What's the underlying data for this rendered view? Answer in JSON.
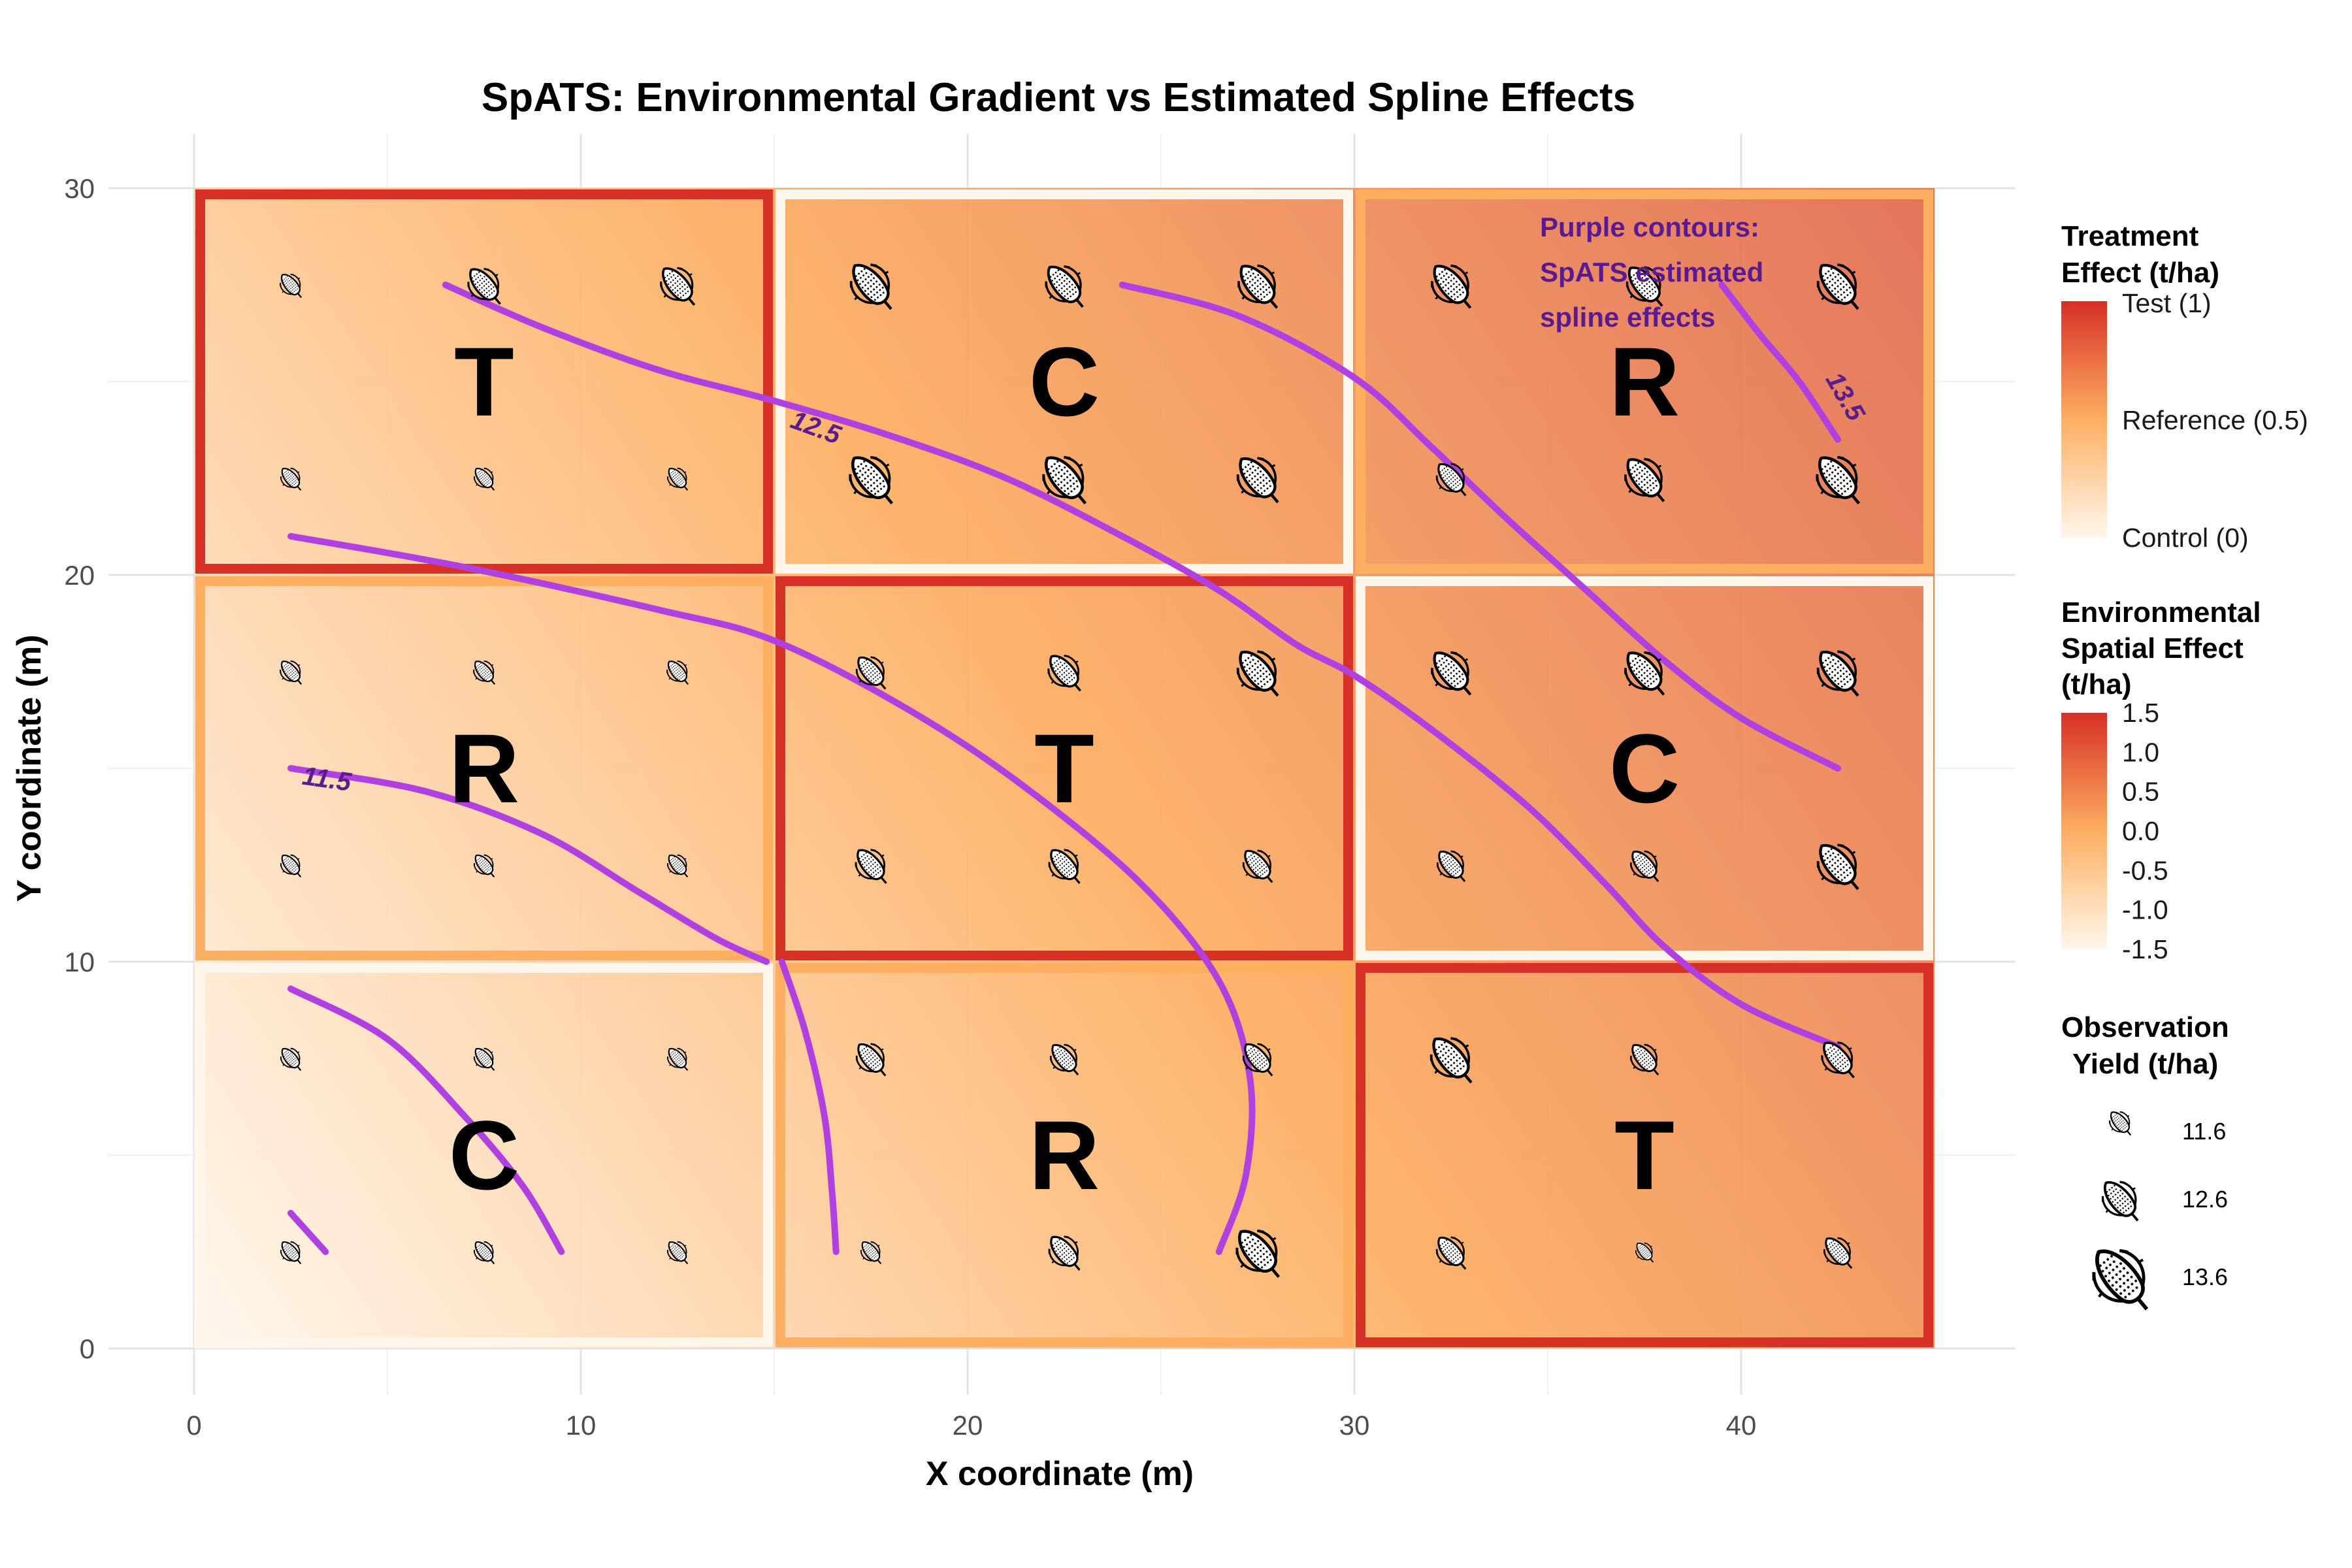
{
  "chart_data": {
    "type": "heatmap",
    "title": "SpATS: Environmental Gradient vs Estimated Spline Effects",
    "xlabel": "X coordinate (m)",
    "ylabel": "Y coordinate (m)",
    "xlim": [
      0,
      45
    ],
    "ylim": [
      0,
      30
    ],
    "x_ticks": [
      0,
      10,
      20,
      30,
      40
    ],
    "y_ticks": [
      0,
      10,
      20,
      30
    ],
    "x_tick_labels": [
      "0",
      "10",
      "20",
      "30",
      "40"
    ],
    "y_tick_labels": [
      "0",
      "10",
      "20",
      "30"
    ],
    "environmental_field": {
      "description_formula": "effect = -1.5 + 3.0 * (x/45 + y/30) / 2",
      "range": [
        -1.5,
        1.5
      ]
    },
    "plots": [
      {
        "letter": "T",
        "treatment": "Test",
        "effect": 1,
        "x0": 0,
        "x1": 15,
        "y0": 20,
        "y1": 30
      },
      {
        "letter": "C",
        "treatment": "Control",
        "effect": 0,
        "x0": 15,
        "x1": 30,
        "y0": 20,
        "y1": 30
      },
      {
        "letter": "R",
        "treatment": "Reference",
        "effect": 0.5,
        "x0": 30,
        "x1": 45,
        "y0": 20,
        "y1": 30
      },
      {
        "letter": "R",
        "treatment": "Reference",
        "effect": 0.5,
        "x0": 0,
        "x1": 15,
        "y0": 10,
        "y1": 20
      },
      {
        "letter": "T",
        "treatment": "Test",
        "effect": 1,
        "x0": 15,
        "x1": 30,
        "y0": 10,
        "y1": 20
      },
      {
        "letter": "C",
        "treatment": "Control",
        "effect": 0,
        "x0": 30,
        "x1": 45,
        "y0": 10,
        "y1": 20
      },
      {
        "letter": "C",
        "treatment": "Control",
        "effect": 0,
        "x0": 0,
        "x1": 15,
        "y0": 0,
        "y1": 10
      },
      {
        "letter": "R",
        "treatment": "Reference",
        "effect": 0.5,
        "x0": 15,
        "x1": 30,
        "y0": 0,
        "y1": 10
      },
      {
        "letter": "T",
        "treatment": "Test",
        "effect": 1,
        "x0": 30,
        "x1": 45,
        "y0": 0,
        "y1": 10
      }
    ],
    "observations": [
      {
        "x": 2.5,
        "y": 27.5,
        "yield": 11.6
      },
      {
        "x": 7.5,
        "y": 27.5,
        "yield": 12.4
      },
      {
        "x": 12.5,
        "y": 27.5,
        "yield": 12.5
      },
      {
        "x": 17.5,
        "y": 27.5,
        "yield": 12.9
      },
      {
        "x": 22.5,
        "y": 27.5,
        "yield": 12.7
      },
      {
        "x": 27.5,
        "y": 27.5,
        "yield": 12.8
      },
      {
        "x": 32.5,
        "y": 27.5,
        "yield": 12.8
      },
      {
        "x": 37.5,
        "y": 27.5,
        "yield": 12.6
      },
      {
        "x": 42.5,
        "y": 27.5,
        "yield": 12.9
      },
      {
        "x": 2.5,
        "y": 22.5,
        "yield": 11.5
      },
      {
        "x": 7.5,
        "y": 22.5,
        "yield": 11.5
      },
      {
        "x": 12.5,
        "y": 22.5,
        "yield": 11.5
      },
      {
        "x": 17.5,
        "y": 22.5,
        "yield": 13.0
      },
      {
        "x": 22.5,
        "y": 22.5,
        "yield": 13.0
      },
      {
        "x": 27.5,
        "y": 22.5,
        "yield": 12.9
      },
      {
        "x": 32.5,
        "y": 22.5,
        "yield": 12.2
      },
      {
        "x": 37.5,
        "y": 22.5,
        "yield": 12.8
      },
      {
        "x": 42.5,
        "y": 22.5,
        "yield": 13.0
      },
      {
        "x": 2.5,
        "y": 17.5,
        "yield": 11.6
      },
      {
        "x": 7.5,
        "y": 17.5,
        "yield": 11.6
      },
      {
        "x": 12.5,
        "y": 17.5,
        "yield": 11.6
      },
      {
        "x": 17.5,
        "y": 17.5,
        "yield": 12.2
      },
      {
        "x": 22.5,
        "y": 17.5,
        "yield": 12.4
      },
      {
        "x": 27.5,
        "y": 17.5,
        "yield": 12.9
      },
      {
        "x": 32.5,
        "y": 17.5,
        "yield": 12.8
      },
      {
        "x": 37.5,
        "y": 17.5,
        "yield": 12.8
      },
      {
        "x": 42.5,
        "y": 17.5,
        "yield": 12.9
      },
      {
        "x": 2.5,
        "y": 12.5,
        "yield": 11.5
      },
      {
        "x": 7.5,
        "y": 12.5,
        "yield": 11.5
      },
      {
        "x": 12.5,
        "y": 12.5,
        "yield": 11.5
      },
      {
        "x": 17.5,
        "y": 12.5,
        "yield": 12.3
      },
      {
        "x": 22.5,
        "y": 12.5,
        "yield": 12.3
      },
      {
        "x": 27.5,
        "y": 12.5,
        "yield": 12.2
      },
      {
        "x": 32.5,
        "y": 12.5,
        "yield": 12.1
      },
      {
        "x": 37.5,
        "y": 12.5,
        "yield": 12.1
      },
      {
        "x": 42.5,
        "y": 12.5,
        "yield": 12.9
      },
      {
        "x": 2.5,
        "y": 7.5,
        "yield": 11.5
      },
      {
        "x": 7.5,
        "y": 7.5,
        "yield": 11.5
      },
      {
        "x": 12.5,
        "y": 7.5,
        "yield": 11.5
      },
      {
        "x": 17.5,
        "y": 7.5,
        "yield": 12.2
      },
      {
        "x": 22.5,
        "y": 7.5,
        "yield": 12.1
      },
      {
        "x": 27.5,
        "y": 7.5,
        "yield": 12.2
      },
      {
        "x": 32.5,
        "y": 7.5,
        "yield": 12.9
      },
      {
        "x": 37.5,
        "y": 7.5,
        "yield": 12.1
      },
      {
        "x": 42.5,
        "y": 7.5,
        "yield": 12.4
      },
      {
        "x": 2.5,
        "y": 2.5,
        "yield": 11.5
      },
      {
        "x": 7.5,
        "y": 2.5,
        "yield": 11.5
      },
      {
        "x": 12.5,
        "y": 2.5,
        "yield": 11.5
      },
      {
        "x": 17.5,
        "y": 2.5,
        "yield": 11.5
      },
      {
        "x": 22.5,
        "y": 2.5,
        "yield": 12.3
      },
      {
        "x": 27.5,
        "y": 2.5,
        "yield": 13.0
      },
      {
        "x": 32.5,
        "y": 2.5,
        "yield": 12.2
      },
      {
        "x": 37.5,
        "y": 2.5,
        "yield": 11.2
      },
      {
        "x": 42.5,
        "y": 2.5,
        "yield": 12.1
      }
    ],
    "contours": [
      {
        "level": "11.5",
        "label": "11.5",
        "label_at": [
          3.4,
          14.5
        ],
        "label_angle": 8,
        "points": [
          [
            2.5,
            15
          ],
          [
            6,
            14.4
          ],
          [
            9,
            13.3
          ],
          [
            11.5,
            11.8
          ],
          [
            13.5,
            10.6
          ],
          [
            14.8,
            10
          ]
        ]
      },
      {
        "level": "11.5b",
        "label": "",
        "points": [
          [
            2.5,
            3.5
          ],
          [
            3.4,
            2.5
          ]
        ]
      },
      {
        "level": "12.0",
        "label": "",
        "points": [
          [
            2.5,
            9.3
          ],
          [
            5,
            8
          ],
          [
            7,
            6
          ],
          [
            8.5,
            4.2
          ],
          [
            9.5,
            2.5
          ]
        ]
      },
      {
        "level": "12.0b",
        "label": "",
        "points": [
          [
            2.5,
            21
          ],
          [
            7,
            20.2
          ],
          [
            12,
            19.1
          ],
          [
            15,
            18.3
          ],
          [
            18.5,
            16.5
          ],
          [
            21.5,
            14.5
          ],
          [
            24.5,
            12
          ],
          [
            26.5,
            9.5
          ],
          [
            27.3,
            7
          ],
          [
            27.2,
            4.5
          ],
          [
            26.5,
            2.5
          ]
        ]
      },
      {
        "level": "12.0c",
        "label": "",
        "points": [
          [
            15.2,
            10
          ],
          [
            15.8,
            8.2
          ],
          [
            16.3,
            6
          ],
          [
            16.5,
            4
          ],
          [
            16.6,
            2.5
          ]
        ]
      },
      {
        "level": "12.5",
        "label": "12.5",
        "label_at": [
          16.0,
          23.6
        ],
        "label_angle": 20,
        "points": [
          [
            6.5,
            27.5
          ],
          [
            9,
            26.4
          ],
          [
            12,
            25.3
          ],
          [
            15,
            24.5
          ],
          [
            18,
            23.6
          ],
          [
            21,
            22.5
          ],
          [
            24,
            21
          ],
          [
            26.5,
            19.6
          ],
          [
            28.5,
            18.2
          ],
          [
            30,
            17.4
          ],
          [
            32,
            16
          ],
          [
            34.5,
            14
          ],
          [
            36.5,
            12
          ],
          [
            38,
            10.4
          ],
          [
            40,
            8.9
          ],
          [
            42.5,
            7.8
          ]
        ]
      },
      {
        "level": "13.0",
        "label": "",
        "points": [
          [
            24,
            27.5
          ],
          [
            27,
            26.7
          ],
          [
            30,
            25.1
          ],
          [
            32,
            23.3
          ],
          [
            34,
            21.4
          ],
          [
            36,
            19.6
          ],
          [
            38,
            17.8
          ],
          [
            40,
            16.3
          ],
          [
            42.5,
            15
          ]
        ]
      },
      {
        "level": "13.5",
        "label": "13.5",
        "label_at": [
          42.5,
          24.5
        ],
        "label_angle": 60,
        "points": [
          [
            39.5,
            27.5
          ],
          [
            40.5,
            26.2
          ],
          [
            41.5,
            25
          ],
          [
            42.5,
            23.5
          ]
        ]
      }
    ],
    "annotation": {
      "lines": [
        "Purple contours:",
        "SpATS estimated",
        "spline effects"
      ],
      "at": [
        35,
        29
      ]
    },
    "legend": {
      "treatment": {
        "title_lines": [
          "Treatment",
          "Effect (t/ha)"
        ],
        "labels": [
          "Test (1)",
          "Reference (0.5)",
          "Control (0)"
        ],
        "values": [
          1,
          0.5,
          0
        ]
      },
      "environment": {
        "title_lines": [
          "Environmental",
          "Spatial Effect",
          "(t/ha)"
        ],
        "labels": [
          "1.5",
          "1.0",
          "0.5",
          "0.0",
          "-0.5",
          "-1.0",
          "-1.5"
        ],
        "values": [
          1.5,
          1.0,
          0.5,
          0.0,
          -0.5,
          -1.0,
          -1.5
        ]
      },
      "yield": {
        "title_lines": [
          "Observation",
          "Yield (t/ha)"
        ],
        "labels": [
          "11.6",
          "12.6",
          "13.6"
        ],
        "values": [
          11.6,
          12.6,
          13.6
        ]
      }
    },
    "colors": {
      "low": "#fff7ec",
      "mid": "#fdae61",
      "high": "#d73027",
      "contour": "#b040e0",
      "annotation": "#5b1a91",
      "grid": "#e3e3e3"
    }
  }
}
